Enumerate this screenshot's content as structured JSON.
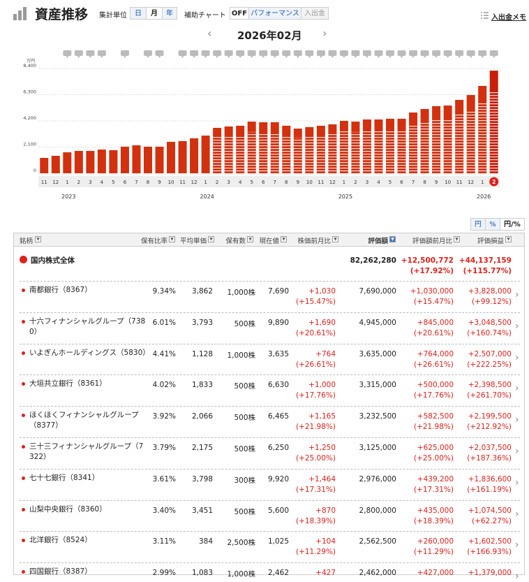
{
  "header": {
    "title": "資産推移",
    "unit_label": "集計単位",
    "units": [
      "日",
      "月",
      "年"
    ],
    "aux_label": "補助チャート",
    "aux_options": [
      "OFF",
      "パフォーマンス",
      "入出金"
    ],
    "memo": "入出金メモ",
    "month": "2026年02月"
  },
  "chart_data": {
    "type": "bar",
    "y_unit": "万円",
    "color": "#d2300e",
    "grid": true,
    "categories": [
      "11",
      "12",
      "1",
      "2",
      "3",
      "4",
      "5",
      "6",
      "7",
      "8",
      "9",
      "10",
      "11",
      "12",
      "1",
      "2",
      "3",
      "4",
      "5",
      "6",
      "7",
      "8",
      "9",
      "10",
      "11",
      "12",
      "1",
      "2",
      "3",
      "4",
      "5",
      "6",
      "7",
      "8",
      "9",
      "10",
      "11",
      "12",
      "1",
      "2"
    ],
    "year_labels": [
      "2023",
      "2024",
      "2025",
      "2026"
    ],
    "values": [
      1230,
      1400,
      1680,
      1790,
      1790,
      1900,
      1850,
      2130,
      2240,
      2130,
      2130,
      2520,
      2580,
      2800,
      3020,
      3640,
      3750,
      3810,
      4140,
      4090,
      4090,
      3810,
      3580,
      3700,
      3810,
      3920,
      4200,
      4140,
      4310,
      4310,
      4370,
      4370,
      4870,
      5150,
      5380,
      5430,
      5880,
      6270,
      7000,
      8226
    ],
    "ylim": [
      0,
      8960
    ],
    "yticks": [
      0,
      {
        "value": 2100,
        "label": "2,100"
      },
      {
        "value": 4200,
        "label": "4,200"
      },
      {
        "value": 6300,
        "label": "6,300"
      },
      {
        "value": 8400,
        "label": "8,400"
      }
    ]
  },
  "toggles": [
    "円",
    "%",
    "円/%"
  ],
  "table": {
    "columns": [
      "銘柄",
      "保有比率",
      "平均単価",
      "保有数",
      "現在値",
      "株価前月比",
      "評価額",
      "評価額前月比",
      "評価損益"
    ],
    "total": {
      "name": "国内株式全体",
      "value": "82,262,280",
      "value_chg": "+12,500,772",
      "value_chg_pct": "(+17.92%)",
      "pl": "+44,137,159",
      "pl_pct": "(+115.77%)"
    },
    "rows": [
      {
        "name": "南都銀行（8367）",
        "ratio": "9.34%",
        "avg": "3,862",
        "qty": "1,000株",
        "price": "7,690",
        "price_chg": "+1,030",
        "price_chg_pct": "(+15.47%)",
        "value": "7,690,000",
        "value_chg": "+1,030,000",
        "value_chg_pct": "(+15.47%)",
        "pl": "+3,828,000",
        "pl_pct": "(+99.12%)"
      },
      {
        "name": "十六フィナンシャルグループ（7380）",
        "ratio": "6.01%",
        "avg": "3,793",
        "qty": "500株",
        "price": "9,890",
        "price_chg": "+1,690",
        "price_chg_pct": "(+20.61%)",
        "value": "4,945,000",
        "value_chg": "+845,000",
        "value_chg_pct": "(+20.61%)",
        "pl": "+3,048,500",
        "pl_pct": "(+160.74%)"
      },
      {
        "name": "いよぎんホールディングス（5830）",
        "ratio": "4.41%",
        "avg": "1,128",
        "qty": "1,000株",
        "price": "3,635",
        "price_chg": "+764",
        "price_chg_pct": "(+26.61%)",
        "value": "3,635,000",
        "value_chg": "+764,000",
        "value_chg_pct": "(+26.61%)",
        "pl": "+2,507,000",
        "pl_pct": "(+222.25%)"
      },
      {
        "name": "大垣共立銀行（8361）",
        "ratio": "4.02%",
        "avg": "1,833",
        "qty": "500株",
        "price": "6,630",
        "price_chg": "+1,000",
        "price_chg_pct": "(+17.76%)",
        "value": "3,315,000",
        "value_chg": "+500,000",
        "value_chg_pct": "(+17.76%)",
        "pl": "+2,398,500",
        "pl_pct": "(+261.70%)"
      },
      {
        "name": "ほくほくフィナンシャルグループ（8377）",
        "ratio": "3.92%",
        "avg": "2,066",
        "qty": "500株",
        "price": "6,465",
        "price_chg": "+1,165",
        "price_chg_pct": "(+21.98%)",
        "value": "3,232,500",
        "value_chg": "+582,500",
        "value_chg_pct": "(+21.98%)",
        "pl": "+2,199,500",
        "pl_pct": "(+212.92%)"
      },
      {
        "name": "三十三フィナンシャルグループ（7322）",
        "ratio": "3.79%",
        "avg": "2,175",
        "qty": "500株",
        "price": "6,250",
        "price_chg": "+1,250",
        "price_chg_pct": "(+25.00%)",
        "value": "3,125,000",
        "value_chg": "+625,000",
        "value_chg_pct": "(+25.00%)",
        "pl": "+2,037,500",
        "pl_pct": "(+187.36%)"
      },
      {
        "name": "七十七銀行（8341）",
        "ratio": "3.61%",
        "avg": "3,798",
        "qty": "300株",
        "price": "9,920",
        "price_chg": "+1,464",
        "price_chg_pct": "(+17.31%)",
        "value": "2,976,000",
        "value_chg": "+439,200",
        "value_chg_pct": "(+17.31%)",
        "pl": "+1,836,600",
        "pl_pct": "(+161.19%)"
      },
      {
        "name": "山梨中央銀行（8360）",
        "ratio": "3.40%",
        "avg": "3,451",
        "qty": "500株",
        "price": "5,600",
        "price_chg": "+870",
        "price_chg_pct": "(+18.39%)",
        "value": "2,800,000",
        "value_chg": "+435,000",
        "value_chg_pct": "(+18.39%)",
        "pl": "+1,074,500",
        "pl_pct": "(+62.27%)"
      },
      {
        "name": "北洋銀行（8524）",
        "ratio": "3.11%",
        "avg": "384",
        "qty": "2,500株",
        "price": "1,025",
        "price_chg": "+104",
        "price_chg_pct": "(+11.29%)",
        "value": "2,562,500",
        "value_chg": "+260,000",
        "value_chg_pct": "(+11.29%)",
        "pl": "+1,602,500",
        "pl_pct": "(+166.93%)"
      },
      {
        "name": "四国銀行（8387）",
        "ratio": "2.99%",
        "avg": "1,083",
        "qty": "1,000株",
        "price": "2,462",
        "price_chg": "+427",
        "value": "2,462,000",
        "value_chg": "+427,000",
        "pl": "+1,379,000"
      }
    ]
  }
}
